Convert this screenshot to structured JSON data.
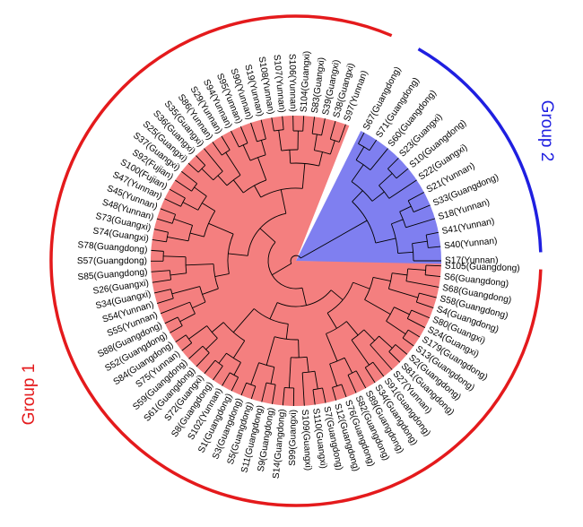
{
  "colors": {
    "group1": "#e41a1c",
    "group1_fill": "#f47f7f",
    "group2": "#1f1fe0",
    "group2_fill": "#7f7ff0",
    "branch": "#000000"
  },
  "groups": [
    {
      "label": "Group 1",
      "color": "#e41a1c"
    },
    {
      "label": "Group 2",
      "color": "#1f1fe0"
    }
  ],
  "leaves": [
    "S105(Guangdong)",
    "S6(Guangdong)",
    "S68(Guangdong)",
    "S58(Guangdong)",
    "S4(Guangdong)",
    "S80(Guangxi)",
    "S24(Guangxi)",
    "S179(Guangdong)",
    "S13(Guangdong)",
    "S2(Guangdong)",
    "S81(Guangdong)",
    "S27(Yunnan)",
    "S91(Guangdong)",
    "S34(Guangdong)",
    "S89(Guangdong)",
    "S82(Guangdong)",
    "S76(Guangdong)",
    "S12(Guangdong)",
    "S7(Guangdong)",
    "S110(Guangxi)",
    "S109(Guangxi)",
    "S99(Guangxi)",
    "S14(Guangdong)",
    "S9(Guangdong)",
    "S11(Guangdong)",
    "S5(Guangdong)",
    "S3(Guangdong)",
    "S1(Guangdong)",
    "S102(Yunnan)",
    "S8(Guangdong)",
    "S72(Guangxi)",
    "S61(Guangdong)",
    "S59(Guangdong)",
    "S75(Yunnan)",
    "S84(Guangdong)",
    "S52(Guangdong)",
    "S88(Guangdong)",
    "S55(Yunnan)",
    "S54(Yunnan)",
    "S34(Guangxi)",
    "S26(Guangxi)",
    "S85(Guangdong)",
    "S57(Guangdong)",
    "S78(Guangdong)",
    "S74(Guangxi)",
    "S73(Guangxi)",
    "S48(Yunnan)",
    "S45(Yunnan)",
    "S47(Yunnan)",
    "S100(Fujian)",
    "S92(Fujian)",
    "S37(Guangxi)",
    "S25(Guangxi)",
    "S36(Guangxi)",
    "S35(Guangxi)",
    "S86(Yunnan)",
    "S29(Yunnan)",
    "S94(Yunnan)",
    "S95(Yunnan)",
    "S90(Yunnan)",
    "S19(Yunnan)",
    "S108(Yunnan)",
    "S107(Yunnan)",
    "S106(Yunnan)",
    "S104(Guangxi)",
    "S83(Guangxi)",
    "S39(Guangxi)",
    "S38(Guangxi)",
    "S97(Yunnan)",
    "S67(Guangdong)",
    "S71(Guangdong)",
    "S60(Guangdong)",
    "S23(Guangxi)",
    "S10(Guangdong)",
    "S22(Guangxi)",
    "S21(Yunnan)",
    "S33(Guangdong)",
    "S18(Yunnan)",
    "S41(Yunnan)",
    "S40(Yunnan)",
    "S17(Yunnan)"
  ]
}
